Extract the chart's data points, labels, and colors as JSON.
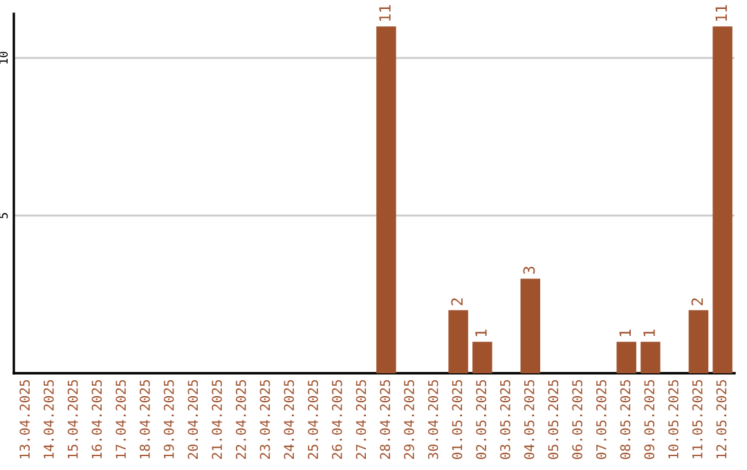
{
  "chart_data": {
    "type": "bar",
    "categories": [
      "13.04.2025",
      "14.04.2025",
      "15.04.2025",
      "16.04.2025",
      "17.04.2025",
      "18.04.2025",
      "19.04.2025",
      "20.04.2025",
      "21.04.2025",
      "22.04.2025",
      "23.04.2025",
      "24.04.2025",
      "25.04.2025",
      "26.04.2025",
      "27.04.2025",
      "28.04.2025",
      "29.04.2025",
      "30.04.2025",
      "01.05.2025",
      "02.05.2025",
      "03.05.2025",
      "04.05.2025",
      "05.05.2025",
      "06.05.2025",
      "07.05.2025",
      "08.05.2025",
      "09.05.2025",
      "10.05.2025",
      "11.05.2025",
      "12.05.2025"
    ],
    "values": [
      0,
      0,
      0,
      0,
      0,
      0,
      0,
      0,
      0,
      0,
      0,
      0,
      0,
      0,
      0,
      11,
      0,
      0,
      2,
      1,
      0,
      3,
      0,
      0,
      0,
      1,
      1,
      0,
      2,
      11
    ],
    "value_labels": [
      null,
      null,
      null,
      null,
      null,
      null,
      null,
      null,
      null,
      null,
      null,
      null,
      null,
      null,
      null,
      "11",
      null,
      null,
      "2",
      "1",
      null,
      "3",
      null,
      null,
      null,
      "1",
      "1",
      null,
      "2",
      "11"
    ],
    "color": "#a0522d",
    "ylim": [
      0,
      11.4
    ],
    "yticks": [
      5,
      10
    ],
    "grid": "y"
  }
}
